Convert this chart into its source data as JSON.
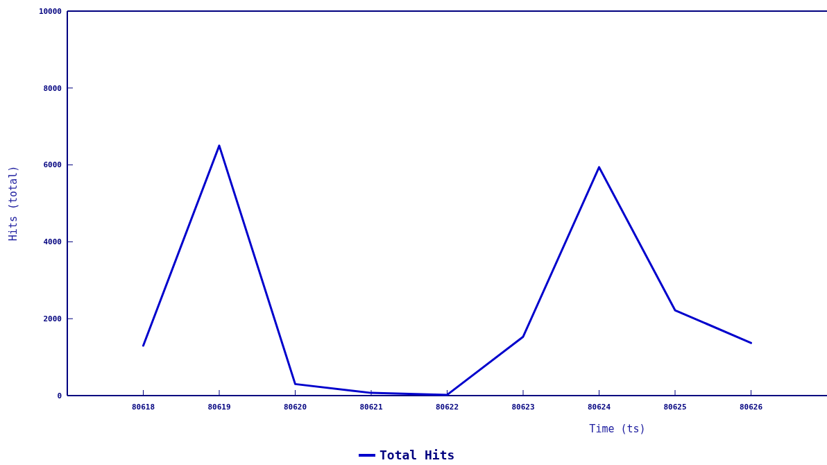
{
  "chart_data": {
    "type": "line",
    "xlabel": "Time (ts)",
    "ylabel": "Hits (total)",
    "x": [
      80618,
      80619,
      80620,
      80621,
      80622,
      80623,
      80624,
      80625,
      80626
    ],
    "series": [
      {
        "name": "Total Hits",
        "color": "#0000cc",
        "values": [
          1300,
          6500,
          300,
          70,
          20,
          1530,
          5940,
          2220,
          1370
        ]
      }
    ],
    "xlim": [
      80617,
      80627
    ],
    "xticks": [
      80618,
      80619,
      80620,
      80621,
      80622,
      80623,
      80624,
      80625,
      80626
    ],
    "ylim": [
      0,
      10000
    ],
    "yticks": [
      0,
      2000,
      4000,
      6000,
      8000,
      10000
    ],
    "grid": false,
    "legend": "bottom",
    "marker": "none",
    "line_style": "solid"
  }
}
